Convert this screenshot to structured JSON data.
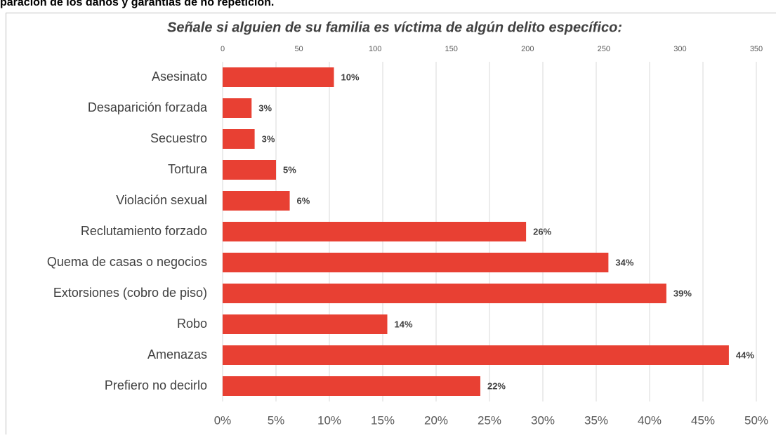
{
  "header_text": "paración de los daños y garantías de no repetición.",
  "chart_data": {
    "type": "bar",
    "orientation": "horizontal",
    "title": "Señale si alguien de su familia es víctima de algún delito específico:",
    "categories": [
      "Asesinato",
      "Desaparición forzada",
      "Secuestro",
      "Tortura",
      "Violación sexual",
      "Reclutamiento forzado",
      "Quema de casas o negocios",
      "Extorsiones (cobro de piso)",
      "Robo",
      "Amenazas",
      "Prefiero no decirlo"
    ],
    "values": [
      73,
      19,
      21,
      35,
      44,
      199,
      253,
      291,
      108,
      332,
      169
    ],
    "data_labels": [
      "10%",
      "3%",
      "3%",
      "5%",
      "6%",
      "26%",
      "34%",
      "39%",
      "14%",
      "44%",
      "22%"
    ],
    "color": "#e84033",
    "xlim": [
      0,
      350
    ],
    "xticks": [
      0,
      50,
      100,
      150,
      200,
      250,
      300,
      350
    ],
    "x2lim": [
      0,
      50
    ],
    "x2ticks": [
      {
        "value": 0,
        "label": "0%"
      },
      {
        "value": 5,
        "label": "5%"
      },
      {
        "value": 10,
        "label": "10%"
      },
      {
        "value": 15,
        "label": "15%"
      },
      {
        "value": 20,
        "label": "20%"
      },
      {
        "value": 25,
        "label": "25%"
      },
      {
        "value": 30,
        "label": "30%"
      },
      {
        "value": 35,
        "label": "35%"
      },
      {
        "value": 40,
        "label": "40%"
      },
      {
        "value": 45,
        "label": "45%"
      },
      {
        "value": 50,
        "label": "50%"
      }
    ],
    "grid": true
  }
}
